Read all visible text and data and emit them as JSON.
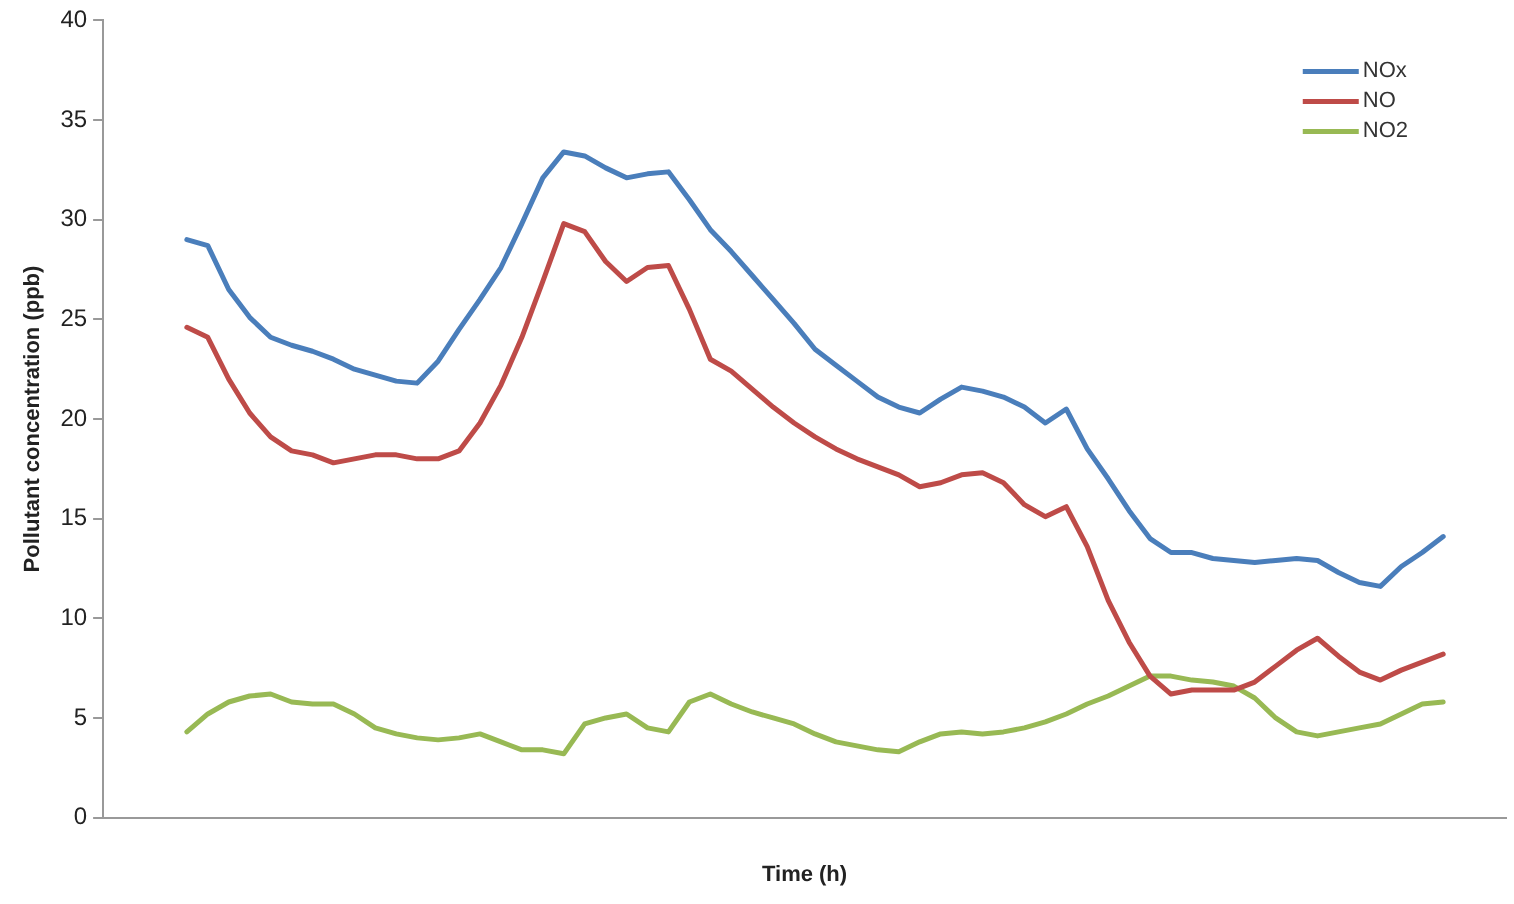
{
  "chart_data": {
    "type": "line",
    "xlabel": "Time (h)",
    "ylabel": "Pollutant concentration (ppb)",
    "categories": [
      null,
      null,
      null,
      null,
      null,
      null,
      null,
      null,
      null,
      null,
      null,
      null,
      null,
      null,
      null,
      null,
      null,
      null,
      null,
      null,
      null,
      null,
      null,
      null,
      null,
      null,
      null,
      null,
      null,
      null,
      null,
      null,
      null,
      null,
      null,
      null,
      null,
      null,
      null,
      null,
      null,
      null,
      null,
      null,
      null,
      null,
      null,
      null,
      null,
      null,
      null,
      null,
      null,
      null,
      null,
      null,
      null,
      null,
      null,
      null,
      null,
      null,
      null,
      null,
      null,
      null,
      null,
      null
    ],
    "series": [
      {
        "name": "NOx",
        "color": "#4a7ebb",
        "values": [
          null,
          null,
          null,
          null,
          29.0,
          28.7,
          26.5,
          25.1,
          24.1,
          23.7,
          23.4,
          23.0,
          22.5,
          22.2,
          21.9,
          21.8,
          22.9,
          24.5,
          26.0,
          27.6,
          29.8,
          32.1,
          33.4,
          33.2,
          32.6,
          32.1,
          32.3,
          32.4,
          31.0,
          29.5,
          28.4,
          27.2,
          26.0,
          24.8,
          23.5,
          22.7,
          21.9,
          21.1,
          20.6,
          20.3,
          21.0,
          21.6,
          21.4,
          21.1,
          20.6,
          19.8,
          20.5,
          18.5,
          17.0,
          15.4,
          14.0,
          13.3,
          13.3,
          13.0,
          12.9,
          12.8,
          12.9,
          13.0,
          12.9,
          12.3,
          11.8,
          11.6,
          12.6,
          13.3,
          14.1,
          null,
          null,
          null
        ]
      },
      {
        "name": "NO",
        "color": "#be4b48",
        "values": [
          null,
          null,
          null,
          null,
          24.6,
          24.1,
          22.0,
          20.3,
          19.1,
          18.4,
          18.2,
          17.8,
          18.0,
          18.2,
          18.2,
          18.0,
          18.0,
          18.4,
          19.8,
          21.7,
          24.1,
          26.9,
          29.8,
          29.4,
          27.9,
          26.9,
          27.6,
          27.7,
          25.5,
          23.0,
          22.4,
          21.5,
          20.6,
          19.8,
          19.1,
          18.5,
          18.0,
          17.6,
          17.2,
          16.6,
          16.8,
          17.2,
          17.3,
          16.8,
          15.7,
          15.1,
          15.6,
          13.6,
          10.9,
          8.8,
          7.1,
          6.2,
          6.4,
          6.4,
          6.4,
          6.8,
          7.6,
          8.4,
          9.0,
          8.1,
          7.3,
          6.9,
          7.4,
          7.8,
          8.2,
          null,
          null,
          null
        ]
      },
      {
        "name": "NO2",
        "color": "#98b954",
        "values": [
          null,
          null,
          null,
          null,
          4.3,
          5.2,
          5.8,
          6.1,
          6.2,
          5.8,
          5.7,
          5.7,
          5.2,
          4.5,
          4.2,
          4.0,
          3.9,
          4.0,
          4.2,
          3.8,
          3.4,
          3.4,
          3.2,
          4.7,
          5.0,
          5.2,
          4.5,
          4.3,
          5.8,
          6.2,
          5.7,
          5.3,
          5.0,
          4.7,
          4.2,
          3.8,
          3.6,
          3.4,
          3.3,
          3.8,
          4.2,
          4.3,
          4.2,
          4.3,
          4.5,
          4.8,
          5.2,
          5.7,
          6.1,
          6.6,
          7.1,
          7.1,
          6.9,
          6.8,
          6.6,
          6.0,
          5.0,
          4.3,
          4.1,
          4.3,
          4.5,
          4.7,
          5.2,
          5.7,
          5.8,
          null,
          null,
          null
        ]
      }
    ],
    "ylim": [
      0,
      40
    ],
    "yticks": [
      0,
      5,
      10,
      15,
      20,
      25,
      30,
      35,
      40
    ],
    "grid": false,
    "legend": "top right",
    "tick_labels": "y",
    "marker": "none",
    "line_style": "solid"
  }
}
